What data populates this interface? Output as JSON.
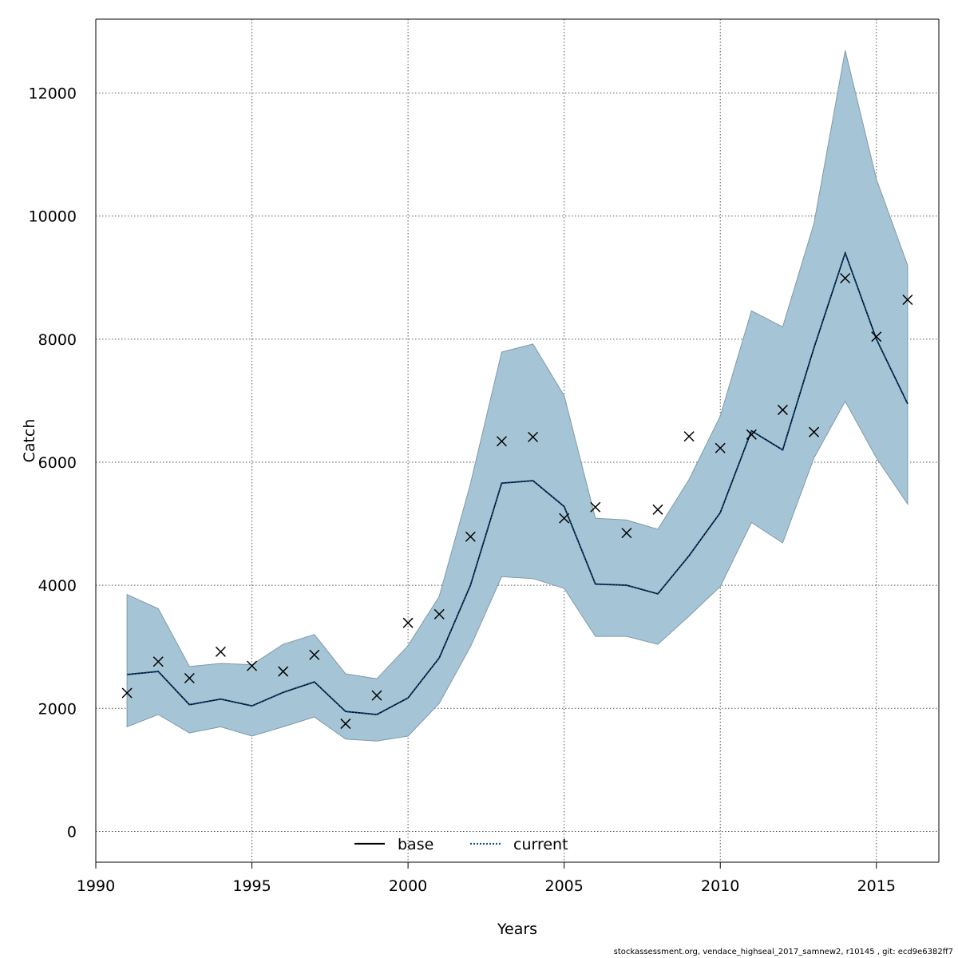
{
  "chart_data": {
    "type": "line",
    "title": "",
    "xlabel": "Years",
    "ylabel": "Catch",
    "xlim": [
      1990,
      2017
    ],
    "ylim": [
      -500,
      13200
    ],
    "x_ticks": [
      1990,
      1995,
      2000,
      2005,
      2010,
      2015
    ],
    "y_ticks": [
      0,
      2000,
      4000,
      6000,
      8000,
      10000,
      12000
    ],
    "grid": true,
    "legend_position": "bottom-center",
    "years": [
      1991,
      1992,
      1993,
      1994,
      1995,
      1996,
      1997,
      1998,
      1999,
      2000,
      2001,
      2002,
      2003,
      2004,
      2005,
      2006,
      2007,
      2008,
      2009,
      2010,
      2011,
      2012,
      2013,
      2014,
      2015,
      2016
    ],
    "series": [
      {
        "name": "base",
        "style": "solid",
        "color": "#000000",
        "values": [
          2550,
          2600,
          2060,
          2150,
          2040,
          2260,
          2430,
          1950,
          1900,
          2170,
          2820,
          4000,
          5660,
          5700,
          5280,
          4020,
          4000,
          3860,
          4480,
          5180,
          6510,
          6200,
          7860,
          9400,
          8000,
          6950
        ]
      },
      {
        "name": "current",
        "style": "dotted",
        "color": "#0b4f8a",
        "values": [
          2550,
          2600,
          2060,
          2150,
          2040,
          2260,
          2430,
          1950,
          1900,
          2170,
          2820,
          4000,
          5660,
          5700,
          5280,
          4020,
          4000,
          3860,
          4480,
          5180,
          6510,
          6200,
          7860,
          9400,
          8000,
          6950
        ]
      }
    ],
    "confidence_band": {
      "color": "#a5c5d7",
      "lower": [
        1700,
        1900,
        1600,
        1700,
        1550,
        1700,
        1860,
        1500,
        1470,
        1550,
        2080,
        3000,
        4140,
        4110,
        3950,
        3170,
        3170,
        3040,
        3500,
        3980,
        5020,
        4690,
        6070,
        6990,
        6070,
        5320
      ],
      "upper": [
        3850,
        3620,
        2680,
        2730,
        2710,
        3040,
        3200,
        2560,
        2480,
        3020,
        3820,
        5650,
        7790,
        7920,
        7080,
        5090,
        5060,
        4910,
        5720,
        6750,
        8460,
        8200,
        9880,
        12690,
        10600,
        9200
      ]
    },
    "observations": {
      "marker": "x",
      "values": [
        2250,
        2760,
        2490,
        2920,
        2690,
        2600,
        2870,
        1750,
        2210,
        3390,
        3530,
        4790,
        6340,
        6410,
        5090,
        5270,
        4850,
        5230,
        6420,
        6230,
        6450,
        6850,
        6490,
        8990,
        8040,
        8640
      ]
    }
  },
  "footer": {
    "note": "stockassessment.org, vendace_highseal_2017_samnew2, r10145 , git: ecd9e6382ff7"
  }
}
